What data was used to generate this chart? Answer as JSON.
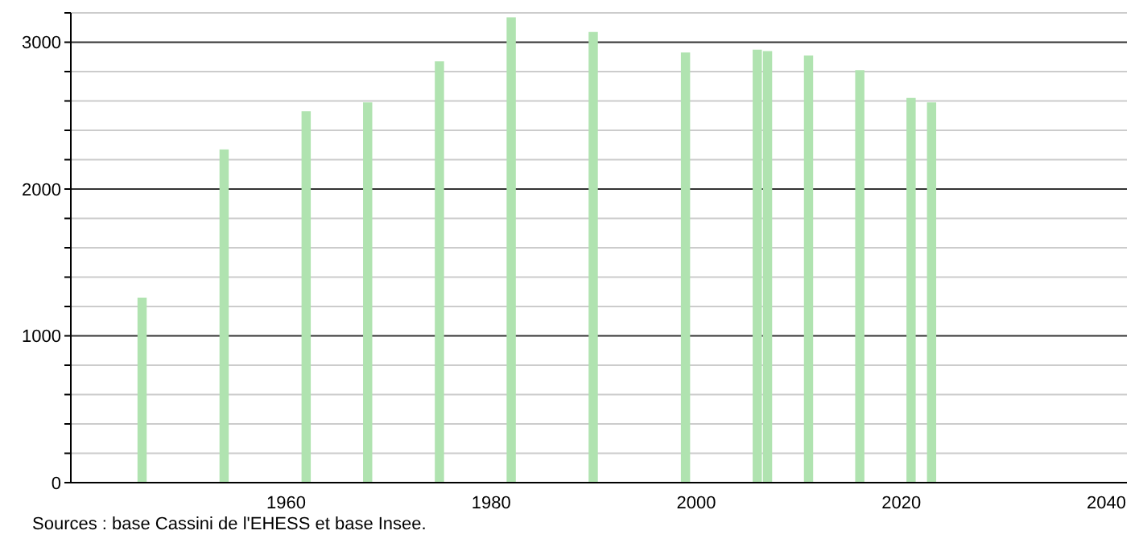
{
  "chart_data": {
    "type": "bar",
    "x": [
      1946,
      1954,
      1962,
      1968,
      1975,
      1982,
      1990,
      1999,
      2006,
      2007,
      2011,
      2016,
      2021,
      2023
    ],
    "values": [
      1260,
      2270,
      2530,
      2590,
      2870,
      3170,
      3070,
      2930,
      2950,
      2940,
      2910,
      2810,
      2620,
      2590
    ],
    "color": "#b0e3b0",
    "xlim": [
      1939,
      2042
    ],
    "xticks": [
      1960,
      1980,
      2000,
      2020,
      2040
    ],
    "ylim": [
      0,
      3200
    ],
    "yticks": [
      0,
      {
        "value": 200,
        "label": null
      },
      {
        "value": 400,
        "label": null
      },
      {
        "value": 600,
        "label": null
      },
      {
        "value": 800,
        "label": null
      },
      1000,
      {
        "value": 1200,
        "label": null
      },
      {
        "value": 1400,
        "label": null
      },
      {
        "value": 1600,
        "label": null
      },
      {
        "value": 1800,
        "label": null
      },
      2000,
      {
        "value": 2200,
        "label": null
      },
      {
        "value": 2400,
        "label": null
      },
      {
        "value": 2600,
        "label": null
      },
      {
        "value": 2800,
        "label": null
      },
      3000,
      {
        "value": 3200,
        "label": null
      }
    ],
    "grid": "y",
    "annotations": [
      "Sources : base Cassini de l'EHESS et base Insee."
    ]
  }
}
